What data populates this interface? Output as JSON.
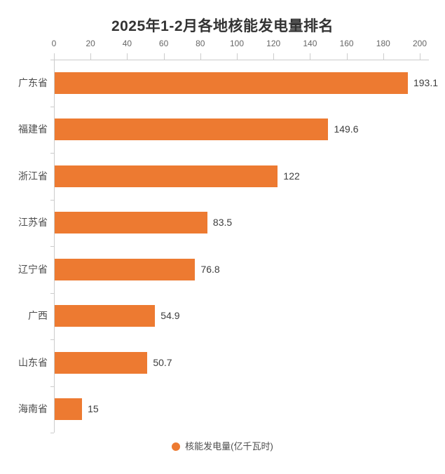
{
  "chart_data": {
    "type": "bar",
    "orientation": "horizontal",
    "title": "2025年1-2月各地核能发电量排名",
    "categories": [
      "广东省",
      "福建省",
      "浙江省",
      "江苏省",
      "辽宁省",
      "广西",
      "山东省",
      "海南省"
    ],
    "values": [
      193.1,
      149.6,
      122,
      83.5,
      76.8,
      54.9,
      50.7,
      15
    ],
    "value_labels": [
      "193.1",
      "149.6",
      "122",
      "83.5",
      "76.8",
      "54.9",
      "50.7",
      "15"
    ],
    "series_name": "核能发电量",
    "unit": "亿千瓦时",
    "x_axis": {
      "position": "top",
      "min": 0,
      "max": 200,
      "tick_interval": 20,
      "ticks": [
        0,
        20,
        40,
        60,
        80,
        100,
        120,
        140,
        160,
        180,
        200
      ]
    },
    "y_axis": {
      "position": "left"
    },
    "grid": false,
    "legend": {
      "label": "核能发电量(亿千瓦时)",
      "position": "bottom",
      "marker": "circle"
    },
    "colors": {
      "bar": "#ed7a31",
      "axis_line": "#cccccc",
      "tick_label": "#666666",
      "category_label": "#4d4d4d",
      "value_label": "#3d3d3d",
      "title": "#333333",
      "legend_label": "#4d4d4d",
      "background": "#ffffff"
    }
  }
}
